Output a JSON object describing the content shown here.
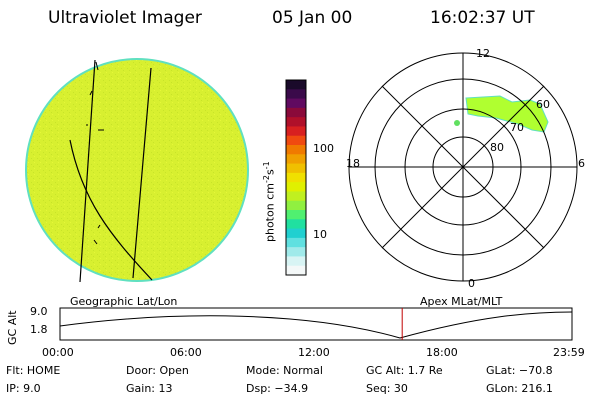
{
  "header": {
    "instrument": "Ultraviolet Imager",
    "date": "05 Jan 00",
    "time": "16:02:37 UT"
  },
  "colors": {
    "disk_fill": "#d8f030",
    "disk_edge": "#60e0c0",
    "oval_fill": "#b0ff30"
  },
  "colorbar": {
    "label": "photon cm",
    "exp1": "-2",
    "mid": "s",
    "exp2": "-1",
    "ticks": [
      "100",
      "10"
    ],
    "colors": [
      "#1a0a2a",
      "#3a0a4a",
      "#600a60",
      "#8a0a3a",
      "#b0102a",
      "#d82020",
      "#f04a10",
      "#f07a00",
      "#f0a000",
      "#f0c000",
      "#f0e000",
      "#e0f000",
      "#c0f020",
      "#90f040",
      "#50f070",
      "#20e0a0",
      "#20d0d0",
      "#60e0e0",
      "#a0eaea",
      "#d8f4f4",
      "#f4f8f8"
    ]
  },
  "polar": {
    "mlt_labels": {
      "top": "12",
      "left": "18",
      "right": "6",
      "bottom": "0"
    },
    "lat_labels": [
      "60",
      "70",
      "80"
    ]
  },
  "panel_labels": {
    "left": "Geographic Lat/Lon",
    "right": "Apex MLat/MLT"
  },
  "altitude_plot": {
    "ylabel": "GC Alt",
    "yticks": [
      "9.0",
      "1.8"
    ],
    "xticks": [
      "00:00",
      "06:00",
      "12:00",
      "18:00",
      "23:59"
    ],
    "current_time_marker_hours": 16.04,
    "marker_color": "#c00000"
  },
  "status": {
    "flt": "Flt: HOME",
    "ip": "IP:  9.0",
    "door": "Door: Open",
    "gain": "Gain: 13",
    "mode": "Mode: Normal",
    "dsp": "Dsp:  −34.9",
    "gcalt": "GC Alt: 1.7 Re",
    "seq": "Seq: 30",
    "glat": "GLat: −70.8",
    "glon": "GLon: 216.1"
  }
}
